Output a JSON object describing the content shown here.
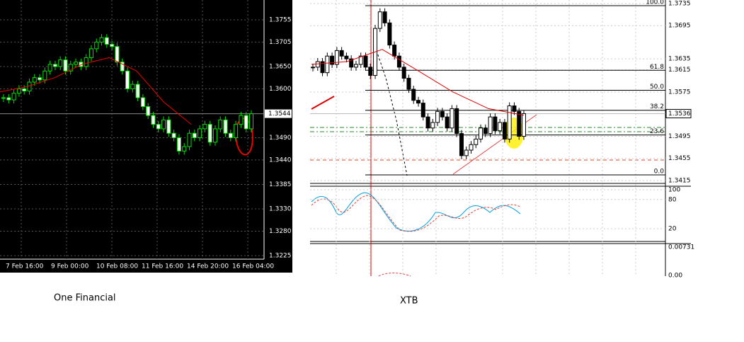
{
  "left": {
    "price_ticks": [
      1.3755,
      1.3705,
      {
        "value": 1.365,
        "label": "1.3650"
      },
      {
        "value": 1.36,
        "label": "1.3600"
      },
      {
        "value": 1.349,
        "label": "1.3490"
      },
      {
        "value": 1.344,
        "label": "1.3440"
      },
      1.3385,
      {
        "value": 1.333,
        "label": "1.3330"
      },
      {
        "value": 1.328,
        "label": "1.3280"
      },
      1.3225
    ],
    "current_price": 1.3544,
    "time_labels": [
      "7 Feb 16:00",
      "9 Feb 00:00",
      "10 Feb 08:00",
      "11 Feb 16:00",
      "14 Feb 20:00",
      "16 Feb 04:00"
    ],
    "closes": [
      1.358,
      1.3575,
      1.359,
      1.36,
      1.3595,
      1.3615,
      1.3625,
      1.362,
      1.364,
      1.3655,
      1.365,
      1.3665,
      1.364,
      1.3655,
      1.366,
      1.365,
      1.367,
      1.369,
      1.3705,
      1.3715,
      1.37,
      1.3695,
      1.366,
      1.364,
      1.36,
      1.361,
      1.358,
      1.356,
      1.354,
      1.352,
      1.351,
      1.353,
      1.35,
      1.349,
      1.346,
      1.347,
      1.35,
      1.349,
      1.351,
      1.352,
      1.348,
      1.351,
      1.353,
      1.35,
      1.349,
      1.352,
      1.354,
      1.351,
      1.3544
    ],
    "moving_average": [
      1.3593,
      1.3605,
      1.3625,
      1.3655,
      1.367,
      1.364,
      1.357,
      1.352
    ],
    "caption": "One Financial"
  },
  "right": {
    "price_ticks": [
      1.3735,
      1.3695,
      1.3635,
      1.3615,
      1.3575,
      1.3495,
      1.3455,
      1.3415
    ],
    "current_price": 1.3536,
    "fib_levels": [
      {
        "value": 100,
        "label": "100.0"
      },
      61.8,
      {
        "value": 50,
        "label": "50.0"
      },
      38.2,
      23.6,
      {
        "value": 0,
        "label": "0.0"
      }
    ],
    "oscillator_ticks": [
      100,
      80,
      20
    ],
    "macd_ticks": [
      0.00731,
      {
        "value": 0,
        "label": "0.00"
      }
    ],
    "closes": [
      1.362,
      1.363,
      1.361,
      1.364,
      1.3625,
      1.365,
      1.364,
      1.3635,
      1.362,
      1.3625,
      1.364,
      1.362,
      1.3605,
      1.369,
      1.372,
      1.37,
      1.366,
      1.364,
      1.362,
      1.36,
      1.358,
      1.356,
      1.3555,
      1.353,
      1.351,
      1.352,
      1.354,
      1.353,
      1.351,
      1.3545,
      1.35,
      1.346,
      1.347,
      1.348,
      1.349,
      1.351,
      1.35,
      1.353,
      1.3505,
      1.352,
      1.349,
      1.355,
      1.354,
      1.3495,
      1.3536
    ],
    "moving_average": [
      1.3625,
      1.363,
      1.3652,
      1.3614,
      1.3575,
      1.3545,
      1.3533
    ],
    "caption": "XTB"
  }
}
